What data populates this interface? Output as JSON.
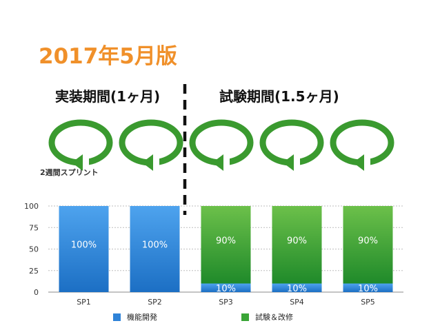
{
  "title": "2017年5月版",
  "phases": {
    "implementation": "実装期間(1ヶ月)",
    "testing": "試験期間(1.5ヶ月)"
  },
  "sprint_note": "2週間スプリント",
  "icons": [
    "sprint-cycle-icon",
    "sprint-cycle-icon",
    "sprint-cycle-icon",
    "sprint-cycle-icon",
    "sprint-cycle-icon"
  ],
  "colors": {
    "title": "#f0902a",
    "feature": "#2f83d8",
    "test": "#3aa537",
    "cycle": "#3a9a2f"
  },
  "chart_data": {
    "type": "bar",
    "stacked": true,
    "categories": [
      "SP1",
      "SP2",
      "SP3",
      "SP4",
      "SP5"
    ],
    "series": [
      {
        "name": "機能開発",
        "values": [
          100,
          100,
          10,
          10,
          10
        ],
        "labels": [
          "100%",
          "100%",
          "10%",
          "10%",
          "10%"
        ]
      },
      {
        "name": "試験＆改修",
        "values": [
          0,
          0,
          90,
          90,
          90
        ],
        "labels": [
          "",
          "",
          "90%",
          "90%",
          "90%"
        ]
      }
    ],
    "ylim": [
      0,
      100
    ],
    "yticks": [
      0,
      25,
      50,
      75,
      100
    ],
    "grid": true,
    "legend": "bottom"
  }
}
